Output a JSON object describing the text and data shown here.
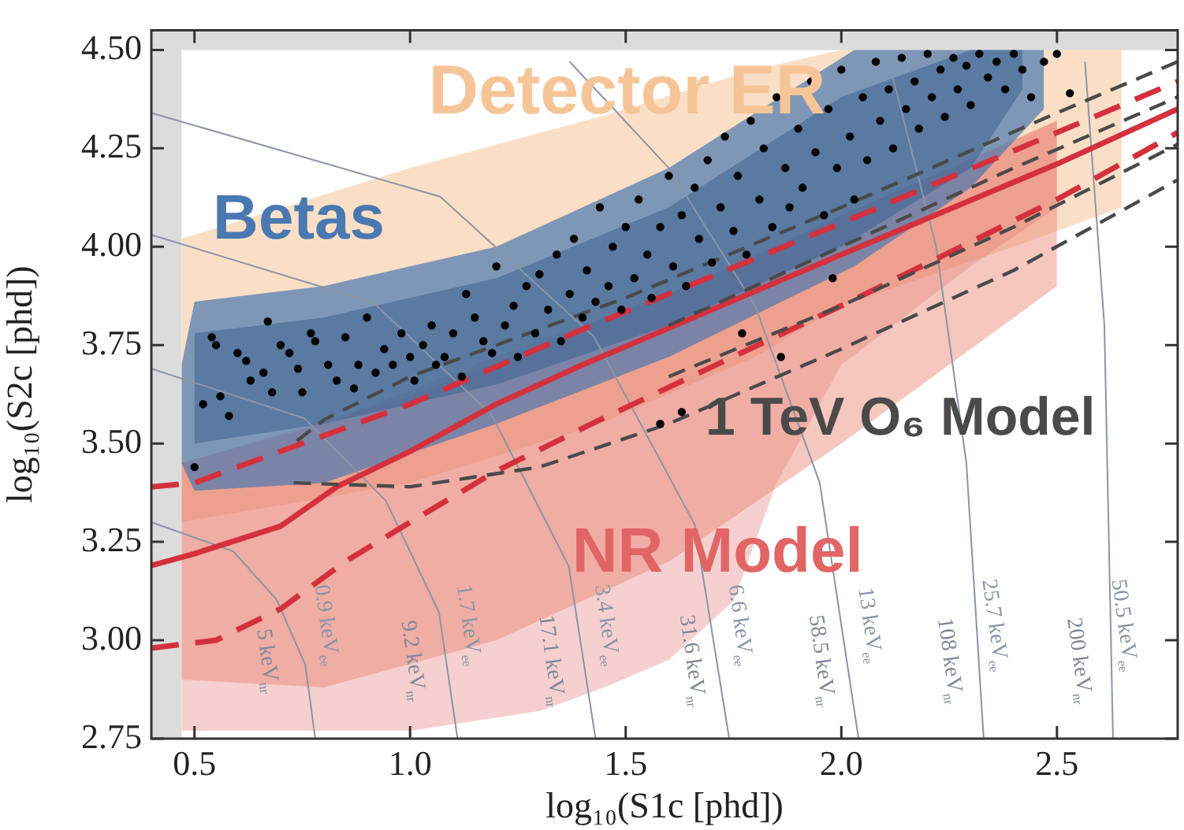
{
  "chart_data": {
    "type": "line",
    "xlabel": "log₁₀(S1c [phd])",
    "ylabel": "log₁₀(S2c [phd])",
    "xlim": [
      0.4,
      2.78
    ],
    "ylim": [
      2.75,
      4.55
    ],
    "xticks": [
      {
        "value": 0.5,
        "label": "0.5"
      },
      {
        "value": 1,
        "label": "1.0"
      },
      {
        "value": 1.5,
        "label": "1.5"
      },
      {
        "value": 2,
        "label": "2.0"
      },
      {
        "value": 2.5,
        "label": "2.5"
      }
    ],
    "yticks": [
      {
        "value": 2.75,
        "label": "2.75"
      },
      {
        "value": 3,
        "label": "3.00"
      },
      {
        "value": 3.25,
        "label": "3.25"
      },
      {
        "value": 3.5,
        "label": "3.50"
      },
      {
        "value": 3.75,
        "label": "3.75"
      },
      {
        "value": 4,
        "label": "4.00"
      },
      {
        "value": 4.25,
        "label": "4.25"
      },
      {
        "value": 4.5,
        "label": "4.50"
      }
    ],
    "bands": [
      {
        "axis": "x",
        "from": 0.4,
        "to": 0.47,
        "color": "#dcdcdc"
      },
      {
        "axis": "y",
        "from": 4.5,
        "to": 4.55,
        "color": "#dcdcdc"
      }
    ],
    "series": [
      {
        "name": "Detector ER",
        "color": "#f6c597",
        "x": [
          0.47,
          1.0,
          1.44,
          1.8,
          2.0,
          2.4,
          2.65
        ],
        "values": [
          null,
          null,
          null,
          null,
          null,
          null,
          null
        ],
        "upper": [
          4.02,
          4.2,
          4.33,
          4.45,
          4.5,
          4.5,
          4.5
        ],
        "lower": [
          3.3,
          3.4,
          3.55,
          3.72,
          3.85,
          4.0,
          4.1
        ]
      },
      {
        "name": "NR Model",
        "color": "#e26565",
        "x": [
          0.47,
          1.0,
          1.3,
          1.45,
          1.6,
          1.75,
          1.85,
          2.0,
          2.3,
          2.5
        ],
        "values": [
          null,
          null,
          null,
          null,
          null,
          null,
          null,
          null,
          null,
          null
        ],
        "upper": [
          3.45,
          3.62,
          3.75,
          3.82,
          3.88,
          3.95,
          4.0,
          4.08,
          4.22,
          4.32
        ],
        "lower": [
          2.77,
          2.77,
          2.82,
          2.88,
          2.95,
          3.1,
          3.4,
          3.7,
          3.95,
          4.1
        ]
      },
      {
        "color": "#e8836f",
        "x": [
          0.47,
          0.8,
          1.2,
          1.6,
          2.0,
          2.5
        ],
        "values": [
          null,
          null,
          null,
          null,
          null,
          null
        ],
        "upper": [
          3.45,
          3.55,
          3.72,
          3.88,
          4.08,
          4.32
        ],
        "lower": [
          2.9,
          2.88,
          3.0,
          3.2,
          3.5,
          3.9
        ]
      },
      {
        "name": "Betas",
        "color": "#4a78b0",
        "x": [
          0.47,
          0.5,
          0.8,
          1.2,
          1.6,
          2.03,
          2.3,
          2.47
        ],
        "values": [
          null,
          null,
          null,
          null,
          null,
          null,
          null,
          null
        ],
        "upper": [
          3.7,
          3.86,
          3.9,
          4.0,
          4.2,
          4.5,
          4.5,
          4.5
        ],
        "lower": [
          3.45,
          3.38,
          3.4,
          3.55,
          3.72,
          3.95,
          4.15,
          4.35
        ]
      },
      {
        "color": "#3c6391",
        "x": [
          0.5,
          0.8,
          1.2,
          1.6,
          2.0,
          2.3,
          2.42
        ],
        "values": [
          null,
          null,
          null,
          null,
          null,
          null,
          null
        ],
        "upper": [
          3.78,
          3.82,
          3.92,
          4.1,
          4.38,
          4.5,
          4.5
        ],
        "lower": [
          3.5,
          3.55,
          3.65,
          3.8,
          4.0,
          4.2,
          4.4
        ]
      },
      {
        "name": "0.9 keV$_{ee}$",
        "color": "#8a95a5",
        "line_style": "solid",
        "x": [
          0.4,
          0.59,
          0.69,
          0.757,
          0.78
        ],
        "values": [
          3.3,
          3.226,
          3.104,
          2.938,
          2.75
        ]
      },
      {
        "name": "1.7 keV$_{ee}$",
        "color": "#8a95a5",
        "line_style": "solid",
        "x": [
          0.4,
          0.755,
          0.944,
          1.067,
          1.11
        ],
        "values": [
          3.69,
          3.564,
          3.354,
          3.071,
          2.75
        ]
      },
      {
        "name": "3.4 keV$_{ee}$",
        "color": "#8a95a5",
        "line_style": "solid",
        "x": [
          0.4,
          0.915,
          1.189,
          1.368,
          1.43
        ],
        "values": [
          4.03,
          3.858,
          3.573,
          3.188,
          2.75
        ]
      },
      {
        "name": "6.6 keV$_{ee}$",
        "color": "#8a95a5",
        "line_style": "solid",
        "x": [
          0.4,
          1.07,
          1.426,
          1.66,
          1.74
        ],
        "values": [
          4.34,
          4.127,
          3.772,
          3.294,
          2.75
        ]
      },
      {
        "name": "13 keV$_{ee}$",
        "color": "#8a95a5",
        "line_style": "solid",
        "x": [
          1.37,
          1.6,
          1.8,
          1.95,
          2.04
        ],
        "values": [
          4.47,
          4.2,
          3.85,
          3.4,
          2.75
        ]
      },
      {
        "name": "25.7 keV$_{ee}$",
        "color": "#8a95a5",
        "line_style": "solid",
        "x": [
          2.11,
          2.22,
          2.29,
          2.33
        ],
        "values": [
          4.47,
          4.0,
          3.45,
          2.75
        ]
      },
      {
        "name": "50.5 keV$_{ee}$",
        "color": "#8a95a5",
        "line_style": "solid",
        "x": [
          2.565,
          2.61,
          2.63
        ],
        "values": [
          4.47,
          3.8,
          2.75
        ]
      },
      {
        "color": "#d5303d",
        "line_style": "dashed",
        "x": [
          0.4,
          0.5,
          0.8,
          1.0,
          1.4,
          2.0,
          2.5,
          2.78
        ],
        "values": [
          3.39,
          3.4,
          3.52,
          3.6,
          3.79,
          4.06,
          4.29,
          4.42
        ]
      },
      {
        "color": "#d5303d",
        "line_style": "solid",
        "x": [
          0.4,
          0.5,
          0.7,
          0.83,
          1.0,
          1.2,
          1.4,
          2.0,
          2.5,
          2.78
        ],
        "values": [
          3.19,
          3.22,
          3.29,
          3.39,
          3.48,
          3.6,
          3.7,
          3.98,
          4.21,
          4.35
        ]
      },
      {
        "color": "#d5303d",
        "line_style": "dashed",
        "x": [
          0.4,
          0.55,
          0.7,
          0.85,
          1.0,
          1.2,
          1.44,
          2.0,
          2.5,
          2.78
        ],
        "values": [
          2.98,
          3.0,
          3.08,
          3.2,
          3.3,
          3.43,
          3.56,
          3.85,
          4.12,
          4.29
        ]
      },
      {
        "name": "1 TeV O₆ Model",
        "color": "#4a4a4a",
        "line_style": "dashed",
        "x": [
          2.78,
          2.5,
          2.0,
          1.5,
          1.0,
          0.8,
          0.73
        ],
        "values": [
          4.47,
          4.34,
          4.1,
          3.87,
          3.67,
          3.56,
          3.5
        ]
      },
      {
        "color": "#4a4a4a",
        "line_style": "dashed",
        "x": [
          0.73,
          1.0,
          1.3,
          1.6,
          2.0,
          2.4,
          2.78
        ],
        "values": [
          3.4,
          3.39,
          3.44,
          3.55,
          3.74,
          3.94,
          4.17
        ]
      },
      {
        "color": "#4a4a4a",
        "line_style": "dashed",
        "x": [
          1.6,
          2.0,
          2.4,
          2.78
        ],
        "values": [
          3.8,
          4.0,
          4.2,
          4.38
        ]
      },
      {
        "color": "#4a4a4a",
        "line_style": "dashed",
        "x": [
          1.6,
          2.0,
          2.4,
          2.78
        ],
        "values": [
          3.67,
          3.85,
          4.05,
          4.26
        ]
      },
      {
        "type": "scatter",
        "color": "#000000",
        "marker": "circle",
        "x": [
          0.52,
          0.54,
          0.55,
          0.56,
          0.58,
          0.6,
          0.62,
          0.63,
          0.66,
          0.67,
          0.68,
          0.7,
          0.72,
          0.74,
          0.75,
          0.77,
          0.78,
          0.5,
          0.81,
          0.83,
          0.85,
          0.87,
          0.88,
          0.9,
          0.92,
          0.94,
          0.96,
          0.98,
          1.0,
          1.01,
          1.03,
          1.05,
          1.06,
          1.08,
          1.1,
          1.12,
          1.13,
          1.15,
          1.17,
          1.19,
          1.2,
          1.22,
          1.24,
          1.25,
          1.27,
          1.29,
          1.3,
          1.32,
          1.34,
          1.35,
          1.37,
          1.38,
          1.4,
          1.41,
          1.43,
          1.44,
          1.46,
          1.47,
          1.49,
          1.5,
          1.52,
          1.53,
          1.55,
          1.56,
          1.58,
          1.6,
          1.61,
          1.63,
          1.64,
          1.66,
          1.67,
          1.69,
          1.7,
          1.72,
          1.73,
          1.75,
          1.76,
          1.78,
          1.79,
          1.81,
          1.82,
          1.84,
          1.85,
          1.87,
          1.88,
          1.9,
          1.91,
          1.93,
          1.94,
          1.96,
          1.97,
          1.99,
          2.0,
          2.02,
          2.03,
          2.05,
          2.06,
          2.08,
          2.09,
          2.11,
          2.12,
          2.14,
          2.15,
          2.17,
          2.18,
          2.2,
          2.21,
          2.23,
          2.24,
          2.26,
          2.27,
          2.29,
          2.3,
          2.32,
          2.34,
          2.36,
          2.38,
          2.4,
          2.42,
          2.44,
          2.47,
          2.5,
          2.53,
          1.77,
          1.86,
          1.98,
          1.63,
          1.58
        ],
        "values": [
          3.6,
          3.77,
          3.75,
          3.62,
          3.57,
          3.73,
          3.71,
          3.66,
          3.68,
          3.81,
          3.63,
          3.75,
          3.73,
          3.69,
          3.63,
          3.78,
          3.76,
          3.44,
          3.7,
          3.66,
          3.77,
          3.64,
          3.7,
          3.82,
          3.68,
          3.74,
          3.7,
          3.78,
          3.72,
          3.66,
          3.75,
          3.8,
          3.7,
          3.72,
          3.78,
          3.67,
          3.88,
          3.82,
          3.76,
          3.73,
          3.95,
          3.8,
          3.85,
          3.72,
          3.9,
          3.78,
          3.93,
          3.84,
          3.98,
          3.76,
          3.88,
          4.02,
          3.82,
          3.94,
          3.86,
          4.1,
          3.9,
          4.0,
          3.84,
          4.05,
          3.92,
          4.12,
          3.98,
          3.87,
          4.05,
          4.18,
          3.95,
          4.08,
          3.9,
          4.15,
          4.02,
          4.22,
          3.96,
          4.1,
          4.28,
          4.04,
          4.18,
          3.98,
          4.32,
          4.12,
          4.25,
          4.05,
          4.38,
          4.2,
          4.1,
          4.3,
          4.15,
          4.42,
          4.24,
          4.08,
          4.35,
          4.2,
          4.45,
          4.28,
          4.12,
          4.38,
          4.22,
          4.47,
          4.32,
          4.4,
          4.25,
          4.48,
          4.35,
          4.42,
          4.3,
          4.49,
          4.38,
          4.45,
          4.33,
          4.48,
          4.4,
          4.46,
          4.36,
          4.49,
          4.43,
          4.47,
          4.4,
          4.49,
          4.45,
          4.38,
          4.47,
          4.49,
          4.39,
          3.78,
          3.72,
          3.92,
          3.58,
          3.55
        ]
      }
    ],
    "annotations": [
      "5 keV$_{nr}$",
      "9.2 keV$_{nr}$",
      "17.1 keV$_{nr}$",
      "31.6 keV$_{nr}$",
      "58.5 keV$_{nr}$",
      "108 keV$_{nr}$",
      "200 keV$_{nr}$"
    ]
  }
}
